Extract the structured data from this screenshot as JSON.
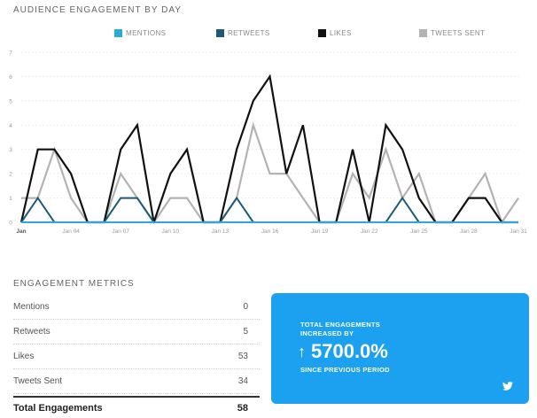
{
  "chart": {
    "title": "AUDIENCE ENGAGEMENT BY DAY"
  },
  "colors": {
    "mentions": "#2ba9d8",
    "retweets": "#1d5a78",
    "likes": "#111111",
    "tweets_sent": "#b3b3b3",
    "promo_bg": "#1ba1ef"
  },
  "chart_data": {
    "type": "line",
    "x": [
      1,
      2,
      3,
      4,
      5,
      6,
      7,
      8,
      9,
      10,
      11,
      12,
      13,
      14,
      15,
      16,
      17,
      18,
      19,
      20,
      21,
      22,
      23,
      24,
      25,
      26,
      27,
      28,
      29,
      30,
      31
    ],
    "x_tick_labels": [
      "Jan",
      "Jan 04",
      "Jan 07",
      "Jan 10",
      "Jan 13",
      "Jan 16",
      "Jan 19",
      "Jan 22",
      "Jan 25",
      "Jan 28",
      "Jan 31"
    ],
    "x_tick_days": [
      1,
      4,
      7,
      10,
      13,
      16,
      19,
      22,
      25,
      28,
      31
    ],
    "y_tick_labels": [
      "0",
      "1",
      "2",
      "3",
      "4",
      "5",
      "6",
      "7"
    ],
    "ylim": [
      0,
      7
    ],
    "grid": true,
    "legend_position": "top",
    "series": [
      {
        "name": "MENTIONS",
        "values": [
          0,
          0,
          0,
          0,
          0,
          0,
          0,
          0,
          0,
          0,
          0,
          0,
          0,
          0,
          0,
          0,
          0,
          0,
          0,
          0,
          0,
          0,
          0,
          0,
          0,
          0,
          0,
          0,
          0,
          0,
          0
        ]
      },
      {
        "name": "RETWEETS",
        "values": [
          0,
          1,
          0,
          0,
          0,
          0,
          1,
          1,
          0,
          0,
          0,
          0,
          0,
          1,
          0,
          0,
          0,
          0,
          0,
          0,
          0,
          0,
          0,
          1,
          0,
          0,
          0,
          0,
          0,
          0,
          0
        ]
      },
      {
        "name": "LIKES",
        "values": [
          0,
          3,
          3,
          2,
          0,
          0,
          3,
          4,
          0,
          2,
          3,
          0,
          0,
          3,
          5,
          6,
          2,
          4,
          0,
          0,
          3,
          0,
          4,
          3,
          1,
          0,
          0,
          1,
          1,
          0,
          0
        ]
      },
      {
        "name": "TWEETS SENT",
        "values": [
          1,
          1,
          3,
          1,
          0,
          0,
          2,
          1,
          0,
          1,
          1,
          0,
          0,
          1,
          4,
          2,
          2,
          1,
          0,
          0,
          2,
          1,
          3,
          1,
          2,
          0,
          0,
          1,
          2,
          0,
          1
        ]
      }
    ]
  },
  "metrics": {
    "title": "ENGAGEMENT METRICS",
    "rows": [
      {
        "label": "Mentions",
        "value": "0"
      },
      {
        "label": "Retweets",
        "value": "5"
      },
      {
        "label": "Likes",
        "value": "53"
      },
      {
        "label": "Tweets Sent",
        "value": "34"
      }
    ],
    "total": {
      "label": "Total Engagements",
      "value": "58"
    }
  },
  "promo": {
    "label": "TOTAL ENGAGEMENTS INCREASED BY",
    "arrow": "↑",
    "value": "5700.0%",
    "sub": "SINCE PREVIOUS PERIOD",
    "icon": "twitter-icon"
  }
}
